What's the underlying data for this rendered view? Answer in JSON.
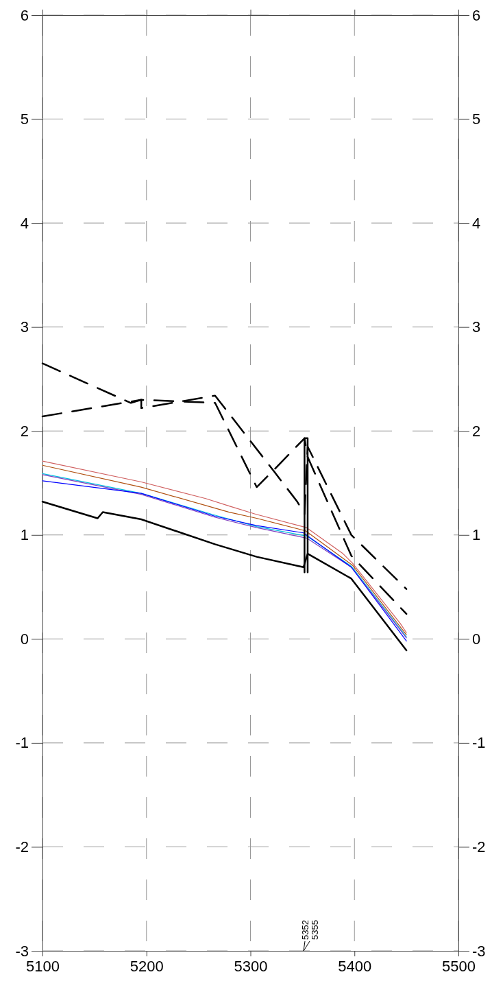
{
  "chart_data": {
    "type": "line",
    "xlim": [
      5100,
      5500
    ],
    "xticks": [
      5100,
      5200,
      5300,
      5400,
      5500
    ],
    "ylim": [
      -3,
      6
    ],
    "yticks": [
      -3,
      -2,
      -1,
      0,
      1,
      2,
      3,
      4,
      5,
      6
    ],
    "y2lim": [
      -3,
      6
    ],
    "y2ticks": [
      -3,
      -2,
      -1,
      0,
      1,
      2,
      3,
      4,
      5,
      6
    ],
    "grid": true,
    "series": [
      {
        "color": "#000000",
        "line_style": "dashed",
        "x": [
          5100,
          5185,
          5195,
          5266,
          5306,
          5322,
          5352,
          5355,
          5397,
          5450
        ],
        "values": [
          2.65,
          2.27,
          2.3,
          2.27,
          1.46,
          1.62,
          1.93,
          1.75,
          0.8,
          0.24
        ]
      },
      {
        "color": "#000000",
        "line_style": "dashed",
        "x": [
          5100,
          5195,
          5195,
          5266,
          5322,
          5345,
          5352,
          5355,
          5397,
          5450
        ],
        "values": [
          2.14,
          2.3,
          2.22,
          2.34,
          1.62,
          1.32,
          1.2,
          1.85,
          1.0,
          0.48
        ]
      },
      {
        "color": "#d06060",
        "line_style": "solid",
        "x": [
          5100,
          5195,
          5257,
          5279,
          5305,
          5354,
          5389,
          5398,
          5444,
          5450
        ],
        "values": [
          1.71,
          1.51,
          1.35,
          1.28,
          1.2,
          1.07,
          0.82,
          0.73,
          0.15,
          0.06
        ]
      },
      {
        "color": "#b05010",
        "line_style": "solid",
        "x": [
          5100,
          5195,
          5279,
          5306,
          5353,
          5398,
          5450
        ],
        "values": [
          1.67,
          1.46,
          1.22,
          1.16,
          1.04,
          0.71,
          0.04
        ]
      },
      {
        "color": "#00c0e0",
        "line_style": "solid",
        "x": [
          5100,
          5195,
          5266,
          5306,
          5354,
          5397,
          5450
        ],
        "values": [
          1.59,
          1.4,
          1.19,
          1.08,
          0.99,
          0.7,
          0.02
        ]
      },
      {
        "color": "#8040c0",
        "line_style": "solid",
        "x": [
          5100,
          5195,
          5266,
          5306,
          5354,
          5397,
          5450
        ],
        "values": [
          1.58,
          1.39,
          1.17,
          1.07,
          0.97,
          0.69,
          0.01
        ]
      },
      {
        "color": "#0000ff",
        "line_style": "solid",
        "x": [
          5100,
          5195,
          5266,
          5306,
          5351,
          5355,
          5397,
          5450
        ],
        "values": [
          1.52,
          1.4,
          1.18,
          1.09,
          1.02,
          0.99,
          0.69,
          -0.02
        ]
      },
      {
        "color": "#000000",
        "line_style": "solid",
        "x": [
          5352,
          5352,
          5355,
          5355
        ],
        "values": [
          0.64,
          1.93,
          1.93,
          0.64
        ]
      },
      {
        "color": "#000000",
        "line_style": "solid",
        "x": [
          5100,
          5153,
          5158,
          5195,
          5266,
          5306,
          5351,
          5355,
          5397,
          5450
        ],
        "values": [
          1.32,
          1.16,
          1.22,
          1.15,
          0.91,
          0.79,
          0.69,
          0.82,
          0.58,
          -0.11
        ]
      }
    ],
    "annotations": [
      "5352",
      "5355"
    ]
  }
}
